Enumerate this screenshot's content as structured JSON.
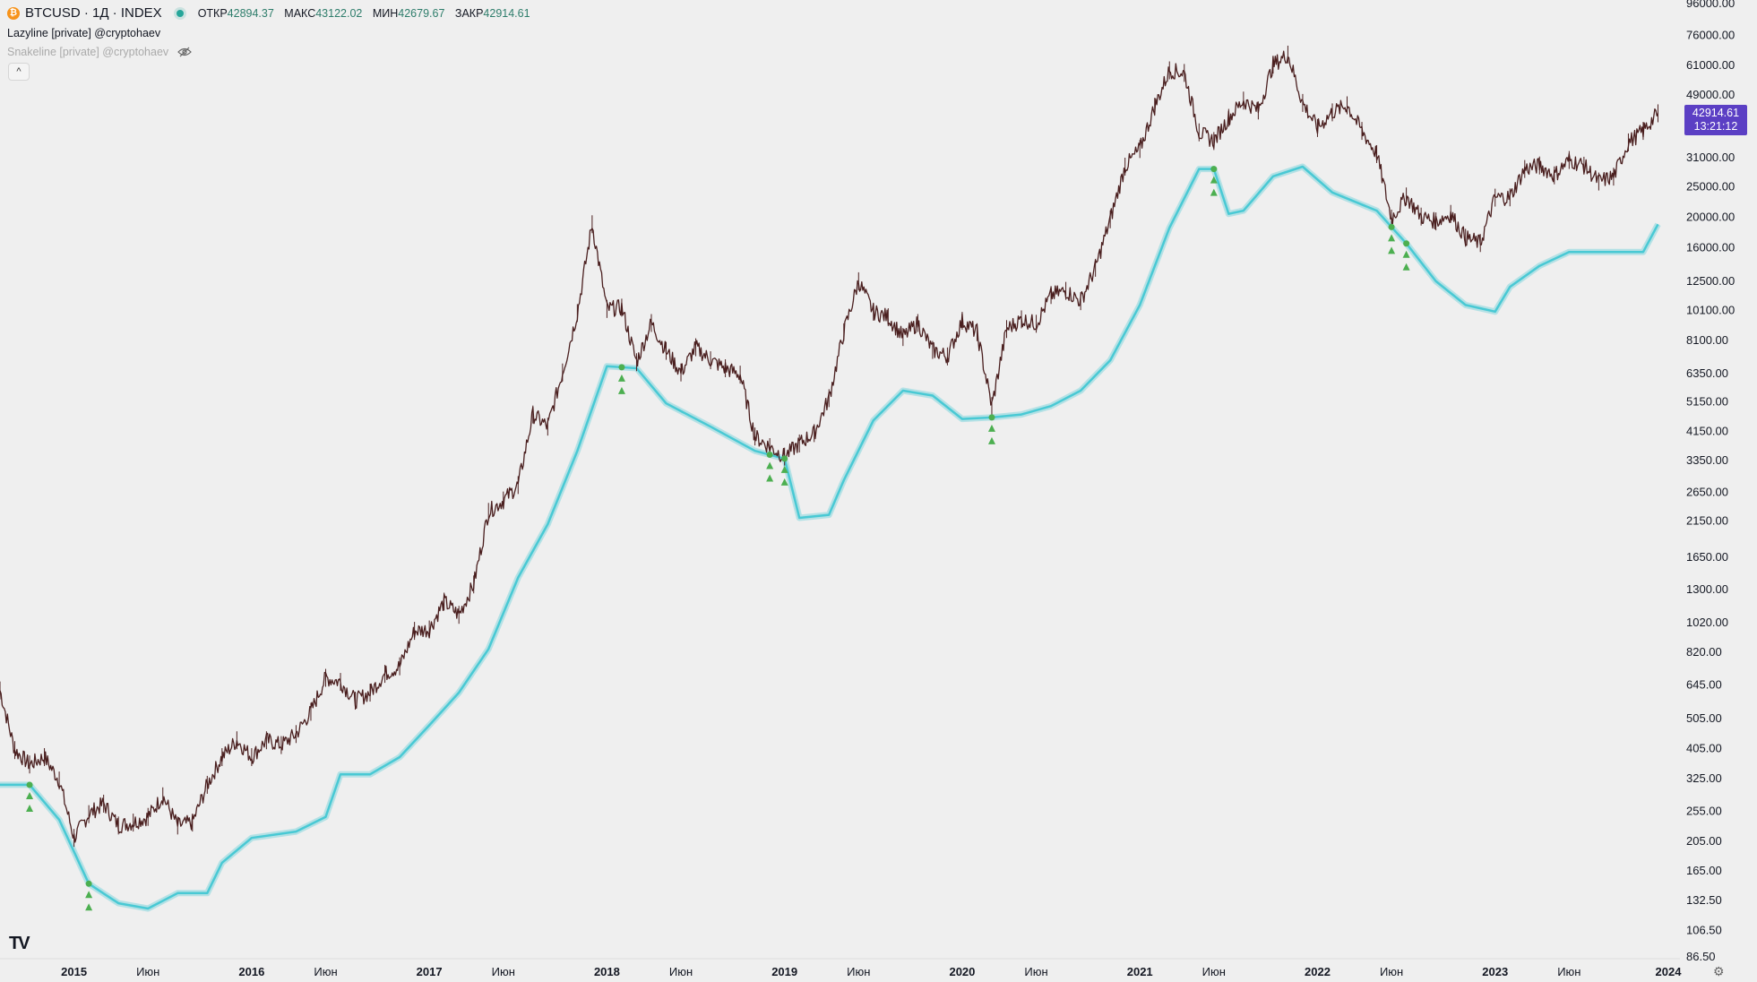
{
  "header": {
    "symbol": "BTCUSD · 1Д · INDEX",
    "ohlc": [
      {
        "label": "ОТКР",
        "value": "42894.37"
      },
      {
        "label": "МАКС",
        "value": "43122.02"
      },
      {
        "label": "МИН",
        "value": "42679.67"
      },
      {
        "label": "ЗАКР",
        "value": "42914.61"
      }
    ],
    "indicator1": "Lazyline [private] @cryptohaev",
    "indicator2": "Snakeline [private] @cryptohaev",
    "collapse_label": "^",
    "logo": "TV"
  },
  "price_tag": {
    "price": "42914.61",
    "timer": "13:21:12"
  },
  "colors": {
    "background": "#efefef",
    "candle": "#4a1f1f",
    "lazyline": "#49c9d4",
    "signal": "#4caf50",
    "tag": "#5b3fc4"
  },
  "chart_data": {
    "type": "line",
    "log_scale": true,
    "y_ticks": [
      "96000.00",
      "76000.00",
      "61000.00",
      "49000.00",
      "31000.00",
      "25000.00",
      "20000.00",
      "16000.00",
      "12500.00",
      "10100.00",
      "8100.00",
      "6350.00",
      "5150.00",
      "4150.00",
      "3350.00",
      "2650.00",
      "2150.00",
      "1650.00",
      "1300.00",
      "1020.00",
      "820.00",
      "645.00",
      "505.00",
      "405.00",
      "325.00",
      "255.00",
      "205.00",
      "165.00",
      "132.50",
      "106.50",
      "86.50"
    ],
    "x_labels": [
      "2015",
      "Июн",
      "2016",
      "Июн",
      "2017",
      "Июн",
      "2018",
      "Июн",
      "2019",
      "Июн",
      "2020",
      "Июн",
      "2021",
      "Июн",
      "2022",
      "Июн",
      "2023",
      "Июн",
      "2024"
    ],
    "x_range": [
      "2014-08",
      "2024-01"
    ],
    "series": [
      {
        "values": [
          [
            "2014-08",
            620
          ],
          [
            "2014-09",
            400
          ],
          [
            "2014-10",
            360
          ],
          [
            "2014-11",
            380
          ],
          [
            "2014-12",
            320
          ],
          [
            "2015-01",
            210
          ],
          [
            "2015-02",
            250
          ],
          [
            "2015-03",
            270
          ],
          [
            "2015-04",
            230
          ],
          [
            "2015-05",
            235
          ],
          [
            "2015-06",
            245
          ],
          [
            "2015-07",
            285
          ],
          [
            "2015-08",
            230
          ],
          [
            "2015-09",
            235
          ],
          [
            "2015-10",
            310
          ],
          [
            "2015-11",
            380
          ],
          [
            "2015-12",
            430
          ],
          [
            "2016-01",
            380
          ],
          [
            "2016-02",
            430
          ],
          [
            "2016-03",
            415
          ],
          [
            "2016-04",
            450
          ],
          [
            "2016-05",
            530
          ],
          [
            "2016-06",
            680
          ],
          [
            "2016-07",
            660
          ],
          [
            "2016-08",
            575
          ],
          [
            "2016-09",
            610
          ],
          [
            "2016-10",
            700
          ],
          [
            "2016-11",
            740
          ],
          [
            "2016-12",
            960
          ],
          [
            "2017-01",
            970
          ],
          [
            "2017-02",
            1190
          ],
          [
            "2017-03",
            1080
          ],
          [
            "2017-04",
            1350
          ],
          [
            "2017-05",
            2300
          ],
          [
            "2017-06",
            2500
          ],
          [
            "2017-07",
            2800
          ],
          [
            "2017-08",
            4700
          ],
          [
            "2017-09",
            4300
          ],
          [
            "2017-10",
            6400
          ],
          [
            "2017-11",
            9900
          ],
          [
            "2017-12",
            19000
          ],
          [
            "2018-01",
            10200
          ],
          [
            "2018-02",
            10300
          ],
          [
            "2018-03",
            6900
          ],
          [
            "2018-04",
            9200
          ],
          [
            "2018-05",
            7500
          ],
          [
            "2018-06",
            6400
          ],
          [
            "2018-07",
            7700
          ],
          [
            "2018-08",
            7000
          ],
          [
            "2018-09",
            6600
          ],
          [
            "2018-10",
            6300
          ],
          [
            "2018-11",
            4000
          ],
          [
            "2018-12",
            3700
          ],
          [
            "2019-01",
            3450
          ],
          [
            "2019-02",
            3800
          ],
          [
            "2019-03",
            4100
          ],
          [
            "2019-04",
            5300
          ],
          [
            "2019-05",
            8600
          ],
          [
            "2019-06",
            12500
          ],
          [
            "2019-07",
            10000
          ],
          [
            "2019-08",
            9600
          ],
          [
            "2019-09",
            8300
          ],
          [
            "2019-10",
            9200
          ],
          [
            "2019-11",
            7550
          ],
          [
            "2019-12",
            7200
          ],
          [
            "2020-01",
            9350
          ],
          [
            "2020-02",
            8600
          ],
          [
            "2020-03",
            5000
          ],
          [
            "2020-04",
            8800
          ],
          [
            "2020-05",
            9450
          ],
          [
            "2020-06",
            9150
          ],
          [
            "2020-07",
            11300
          ],
          [
            "2020-08",
            11650
          ],
          [
            "2020-09",
            10800
          ],
          [
            "2020-10",
            13800
          ],
          [
            "2020-11",
            19700
          ],
          [
            "2020-12",
            29000
          ],
          [
            "2021-01",
            33000
          ],
          [
            "2021-02",
            45000
          ],
          [
            "2021-03",
            58800
          ],
          [
            "2021-04",
            57700
          ],
          [
            "2021-05",
            37300
          ],
          [
            "2021-06",
            35000
          ],
          [
            "2021-07",
            41500
          ],
          [
            "2021-08",
            47100
          ],
          [
            "2021-09",
            43800
          ],
          [
            "2021-10",
            61300
          ],
          [
            "2021-11",
            66000
          ],
          [
            "2021-12",
            46300
          ],
          [
            "2022-01",
            38500
          ],
          [
            "2022-02",
            43200
          ],
          [
            "2022-03",
            45500
          ],
          [
            "2022-04",
            37700
          ],
          [
            "2022-05",
            31800
          ],
          [
            "2022-06",
            19800
          ],
          [
            "2022-07",
            23300
          ],
          [
            "2022-08",
            20100
          ],
          [
            "2022-09",
            19400
          ],
          [
            "2022-10",
            20500
          ],
          [
            "2022-11",
            17200
          ],
          [
            "2022-12",
            16550
          ],
          [
            "2023-01",
            23100
          ],
          [
            "2023-02",
            23150
          ],
          [
            "2023-03",
            28500
          ],
          [
            "2023-04",
            29250
          ],
          [
            "2023-05",
            27200
          ],
          [
            "2023-06",
            30450
          ],
          [
            "2023-07",
            29200
          ],
          [
            "2023-08",
            26000
          ],
          [
            "2023-09",
            26950
          ],
          [
            "2023-10",
            34650
          ],
          [
            "2023-11",
            37700
          ],
          [
            "2023-12",
            42900
          ]
        ]
      },
      {
        "values": [
          [
            "2014-08",
            310
          ],
          [
            "2014-10",
            310
          ],
          [
            "2014-12",
            240
          ],
          [
            "2015-02",
            150
          ],
          [
            "2015-04",
            130
          ],
          [
            "2015-06",
            125
          ],
          [
            "2015-08",
            140
          ],
          [
            "2015-10",
            140
          ],
          [
            "2015-11",
            175
          ],
          [
            "2016-01",
            210
          ],
          [
            "2016-04",
            220
          ],
          [
            "2016-06",
            245
          ],
          [
            "2016-07",
            335
          ],
          [
            "2016-09",
            335
          ],
          [
            "2016-11",
            380
          ],
          [
            "2017-01",
            480
          ],
          [
            "2017-03",
            610
          ],
          [
            "2017-05",
            840
          ],
          [
            "2017-07",
            1420
          ],
          [
            "2017-09",
            2100
          ],
          [
            "2017-11",
            3600
          ],
          [
            "2018-01",
            6700
          ],
          [
            "2018-03",
            6600
          ],
          [
            "2018-05",
            5100
          ],
          [
            "2018-08",
            4300
          ],
          [
            "2018-11",
            3600
          ],
          [
            "2019-01",
            3400
          ],
          [
            "2019-02",
            2200
          ],
          [
            "2019-04",
            2250
          ],
          [
            "2019-05",
            2900
          ],
          [
            "2019-07",
            4500
          ],
          [
            "2019-09",
            5600
          ],
          [
            "2019-11",
            5400
          ],
          [
            "2020-01",
            4550
          ],
          [
            "2020-03",
            4600
          ],
          [
            "2020-05",
            4700
          ],
          [
            "2020-07",
            5000
          ],
          [
            "2020-09",
            5600
          ],
          [
            "2020-11",
            7000
          ],
          [
            "2021-01",
            10500
          ],
          [
            "2021-03",
            18500
          ],
          [
            "2021-05",
            28500
          ],
          [
            "2021-06",
            28500
          ],
          [
            "2021-07",
            20500
          ],
          [
            "2021-08",
            21000
          ],
          [
            "2021-10",
            27000
          ],
          [
            "2021-12",
            29000
          ],
          [
            "2022-02",
            24000
          ],
          [
            "2022-05",
            21000
          ],
          [
            "2022-07",
            16500
          ],
          [
            "2022-09",
            12500
          ],
          [
            "2022-11",
            10500
          ],
          [
            "2023-01",
            10000
          ],
          [
            "2023-02",
            12000
          ],
          [
            "2023-04",
            14000
          ],
          [
            "2023-06",
            15500
          ],
          [
            "2023-09",
            15500
          ],
          [
            "2023-11",
            15500
          ],
          [
            "2023-12",
            19000
          ]
        ]
      }
    ],
    "signals": [
      "2014-10",
      "2015-02",
      "2018-02",
      "2018-12",
      "2019-01",
      "2020-03",
      "2021-06",
      "2022-06",
      "2022-07"
    ]
  }
}
